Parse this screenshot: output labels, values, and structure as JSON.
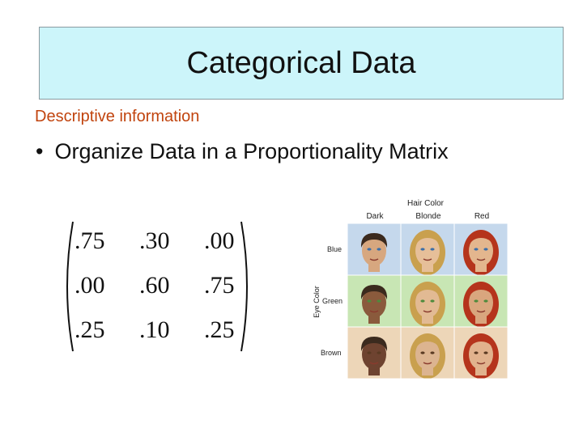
{
  "slide": {
    "title": "Categorical Data",
    "subtitle": "Descriptive information",
    "bullet": "Organize Data in a Proportionality Matrix"
  },
  "matrix": {
    "rows": [
      [
        ".75",
        ".30",
        ".00"
      ],
      [
        ".00",
        ".60",
        ".75"
      ],
      [
        ".25",
        ".10",
        ".25"
      ]
    ]
  },
  "face_figure": {
    "hair_color_label": "Hair Color",
    "eye_color_label": "Eye Color",
    "columns": [
      "Dark",
      "Blonde",
      "Red"
    ],
    "rows": [
      "Blue",
      "Green",
      "Brown"
    ],
    "row_colors": {
      "blue": "#c5d8ec",
      "green": "#c8e6b4",
      "brown": "#edd6b8"
    },
    "hair_colors": {
      "dark": "#3b2a1e",
      "blonde": "#c9a04e",
      "red": "#b5341c"
    },
    "skin_colors": [
      "#d7a77f",
      "#e6bf99",
      "#e3b68e",
      "#8a5a3c",
      "#e2ba93",
      "#d9a67e",
      "#6e4330",
      "#dcb490",
      "#e1b28d"
    ]
  }
}
